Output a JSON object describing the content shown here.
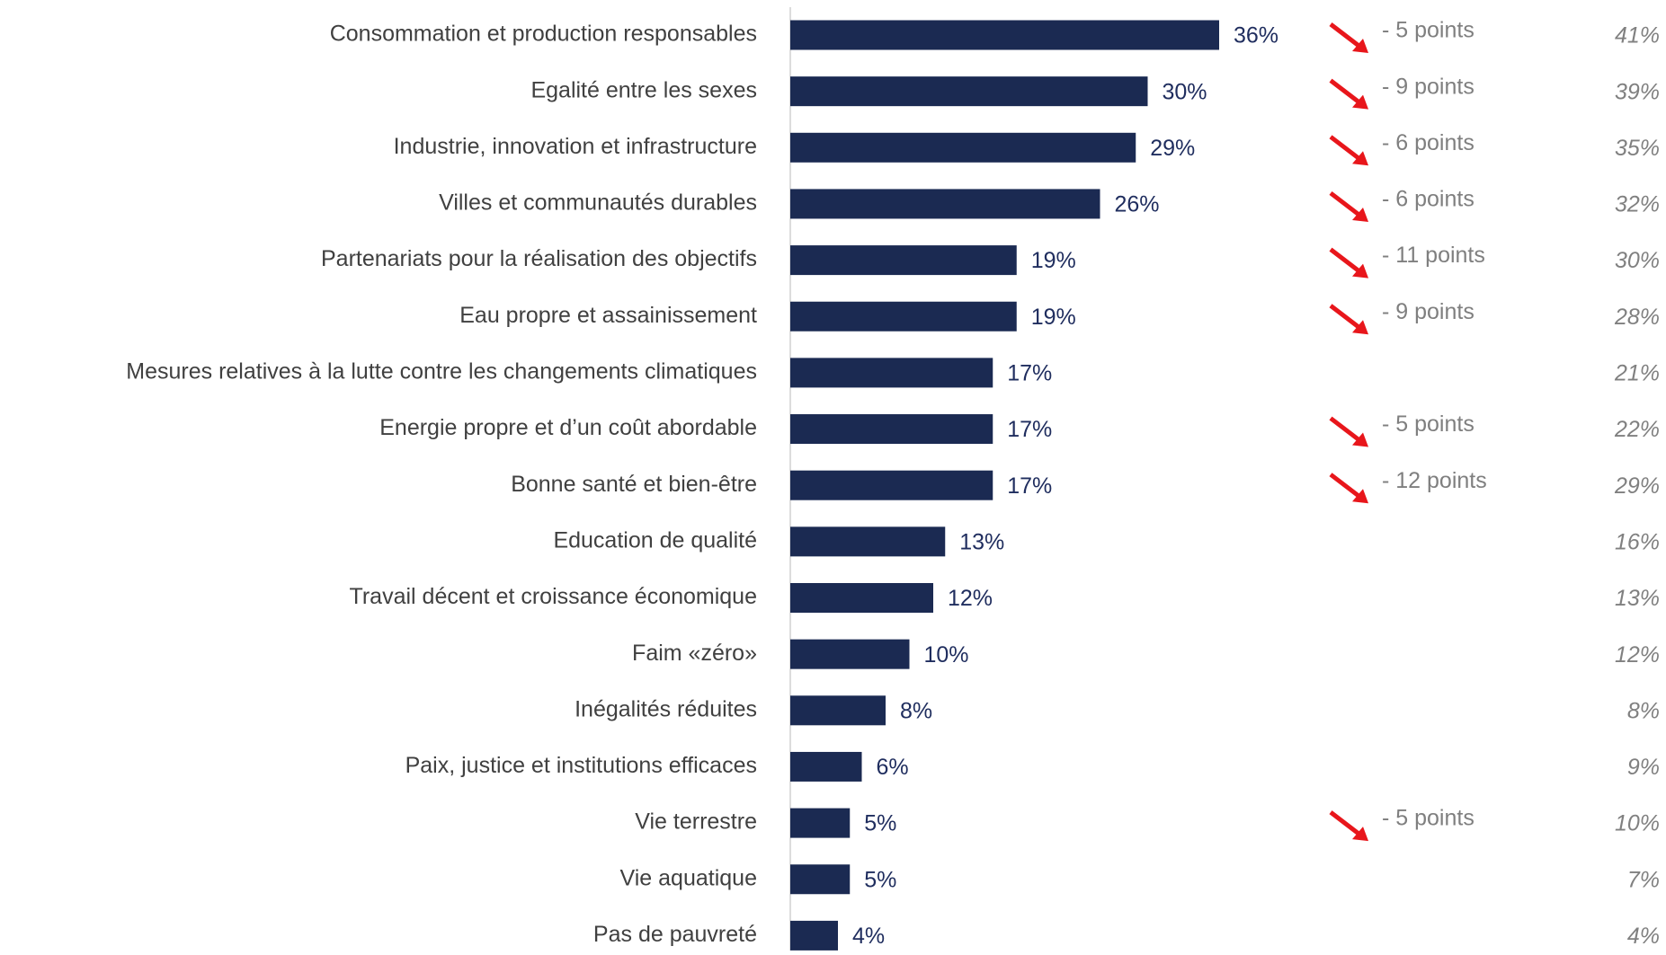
{
  "chart_data": {
    "type": "bar",
    "orientation": "horizontal",
    "categories": [
      "Consommation et production responsables",
      "Egalité entre les sexes",
      "Industrie, innovation et infrastructure",
      "Villes et communautés durables",
      "Partenariats pour la réalisation des objectifs",
      "Eau propre et assainissement",
      "Mesures relatives à la lutte contre les changements climatiques",
      "Energie propre et d’un coût abordable",
      "Bonne santé et bien-être",
      "Education de qualité",
      "Travail décent et croissance économique",
      "Faim «zéro»",
      "Inégalités réduites",
      "Paix, justice et institutions efficaces",
      "Vie terrestre",
      "Vie aquatique",
      "Pas de pauvreté"
    ],
    "values": [
      36,
      30,
      29,
      26,
      19,
      19,
      17,
      17,
      17,
      13,
      12,
      10,
      8,
      6,
      5,
      5,
      4
    ],
    "value_labels": [
      "36%",
      "30%",
      "29%",
      "26%",
      "19%",
      "19%",
      "17%",
      "17%",
      "17%",
      "13%",
      "12%",
      "10%",
      "8%",
      "6%",
      "5%",
      "5%",
      "4%"
    ],
    "changes": [
      "- 5 points",
      "- 9 points",
      "- 6 points",
      "- 6 points",
      "- 11 points",
      "- 9 points",
      null,
      "- 5 points",
      "- 12 points",
      null,
      null,
      null,
      null,
      null,
      "- 5 points",
      null,
      null
    ],
    "previous": [
      "41%",
      "39%",
      "35%",
      "32%",
      "30%",
      "28%",
      "21%",
      "22%",
      "29%",
      "16%",
      "13%",
      "12%",
      "8%",
      "9%",
      "10%",
      "7%",
      "4%"
    ],
    "color": "#1b2a52",
    "change_color": "#e8161b",
    "xlim": [
      0,
      40
    ]
  }
}
